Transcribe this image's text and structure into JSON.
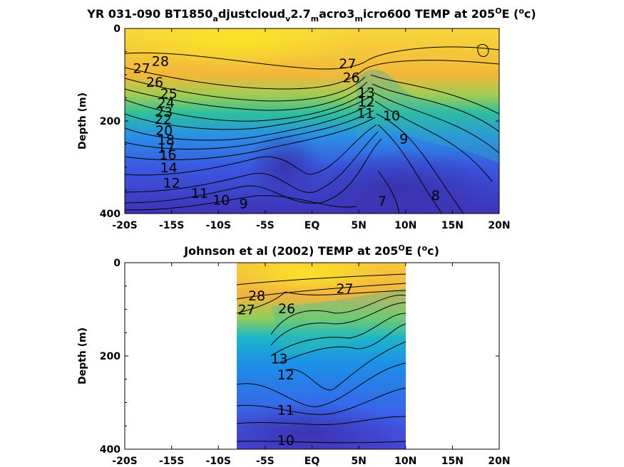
{
  "chart_data": [
    {
      "type": "heatmap",
      "title_parts": [
        "YR 031-090 BT1850",
        "a",
        "djustcloud",
        "v",
        "2.7",
        "m",
        "acro3",
        "m",
        "icro600 TEMP at 205",
        "O",
        "E (",
        "o",
        "c)"
      ],
      "ylabel": "Depth (m)",
      "xticks": [
        "-20S",
        "-15S",
        "-10S",
        "-5S",
        "EQ",
        "5N",
        "10N",
        "15N",
        "20N"
      ],
      "yticks": [
        "0",
        "200",
        "400"
      ],
      "x": [
        -20,
        -15,
        -10,
        -5,
        0,
        5,
        10,
        15,
        20
      ],
      "xlim": [
        -20,
        20
      ],
      "ylim": [
        0,
        400
      ],
      "colormap": [
        "#3e26a8",
        "#2f6ef5",
        "#1fa8dc",
        "#2cc29b",
        "#9ccd4e",
        "#f0bd3a",
        "#f9dd25"
      ],
      "contour_labels": [
        {
          "text": "28",
          "x": -16.2,
          "y": 70
        },
        {
          "text": "27",
          "x": -18.2,
          "y": 85
        },
        {
          "text": "26",
          "x": -16.8,
          "y": 115
        },
        {
          "text": "25",
          "x": -15.3,
          "y": 140
        },
        {
          "text": "24",
          "x": -15.6,
          "y": 160
        },
        {
          "text": "23",
          "x": -15.8,
          "y": 180
        },
        {
          "text": "22",
          "x": -15.9,
          "y": 195
        },
        {
          "text": "20",
          "x": -15.8,
          "y": 220
        },
        {
          "text": "18",
          "x": -15.6,
          "y": 240
        },
        {
          "text": "17",
          "x": -15.6,
          "y": 258
        },
        {
          "text": "16",
          "x": -15.4,
          "y": 272
        },
        {
          "text": "14",
          "x": -15.3,
          "y": 300
        },
        {
          "text": "12",
          "x": -15.0,
          "y": 333
        },
        {
          "text": "11",
          "x": -12.0,
          "y": 355
        },
        {
          "text": "10",
          "x": -9.7,
          "y": 370
        },
        {
          "text": "9",
          "x": -7.3,
          "y": 378
        },
        {
          "text": "27",
          "x": 3.8,
          "y": 75
        },
        {
          "text": "26",
          "x": 4.2,
          "y": 105
        },
        {
          "text": "13",
          "x": 5.8,
          "y": 138
        },
        {
          "text": "12",
          "x": 5.8,
          "y": 158
        },
        {
          "text": "11",
          "x": 5.7,
          "y": 182
        },
        {
          "text": "10",
          "x": 8.5,
          "y": 188
        },
        {
          "text": "9",
          "x": 9.8,
          "y": 238
        },
        {
          "text": "8",
          "x": 13.2,
          "y": 360
        },
        {
          "text": "7",
          "x": 7.5,
          "y": 372
        }
      ]
    },
    {
      "type": "heatmap",
      "title_parts": [
        "Johnson et al (2002) TEMP at 205",
        "O",
        "E (",
        "o",
        "c)"
      ],
      "ylabel": "Depth (m)",
      "xticks": [
        "-20S",
        "-15S",
        "-10S",
        "-5S",
        "EQ",
        "5N",
        "10N",
        "15N",
        "20N"
      ],
      "yticks": [
        "0",
        "200",
        "400"
      ],
      "x": [
        -20,
        -15,
        -10,
        -5,
        0,
        5,
        10,
        15,
        20
      ],
      "xlim": [
        -20,
        20
      ],
      "ylim": [
        0,
        400
      ],
      "data_xrange": [
        -8,
        10
      ],
      "colormap": [
        "#3e26a8",
        "#2f6ef5",
        "#1fa8dc",
        "#2cc29b",
        "#9ccd4e",
        "#f0bd3a",
        "#f9dd25"
      ],
      "contour_labels": [
        {
          "text": "28",
          "x": -5.9,
          "y": 70
        },
        {
          "text": "27",
          "x": -7.0,
          "y": 100
        },
        {
          "text": "26",
          "x": -2.7,
          "y": 98
        },
        {
          "text": "27",
          "x": 3.5,
          "y": 55
        },
        {
          "text": "13",
          "x": -3.5,
          "y": 205
        },
        {
          "text": "12",
          "x": -2.8,
          "y": 240
        },
        {
          "text": "11",
          "x": -2.8,
          "y": 315
        },
        {
          "text": "10",
          "x": -2.8,
          "y": 380
        }
      ]
    }
  ]
}
